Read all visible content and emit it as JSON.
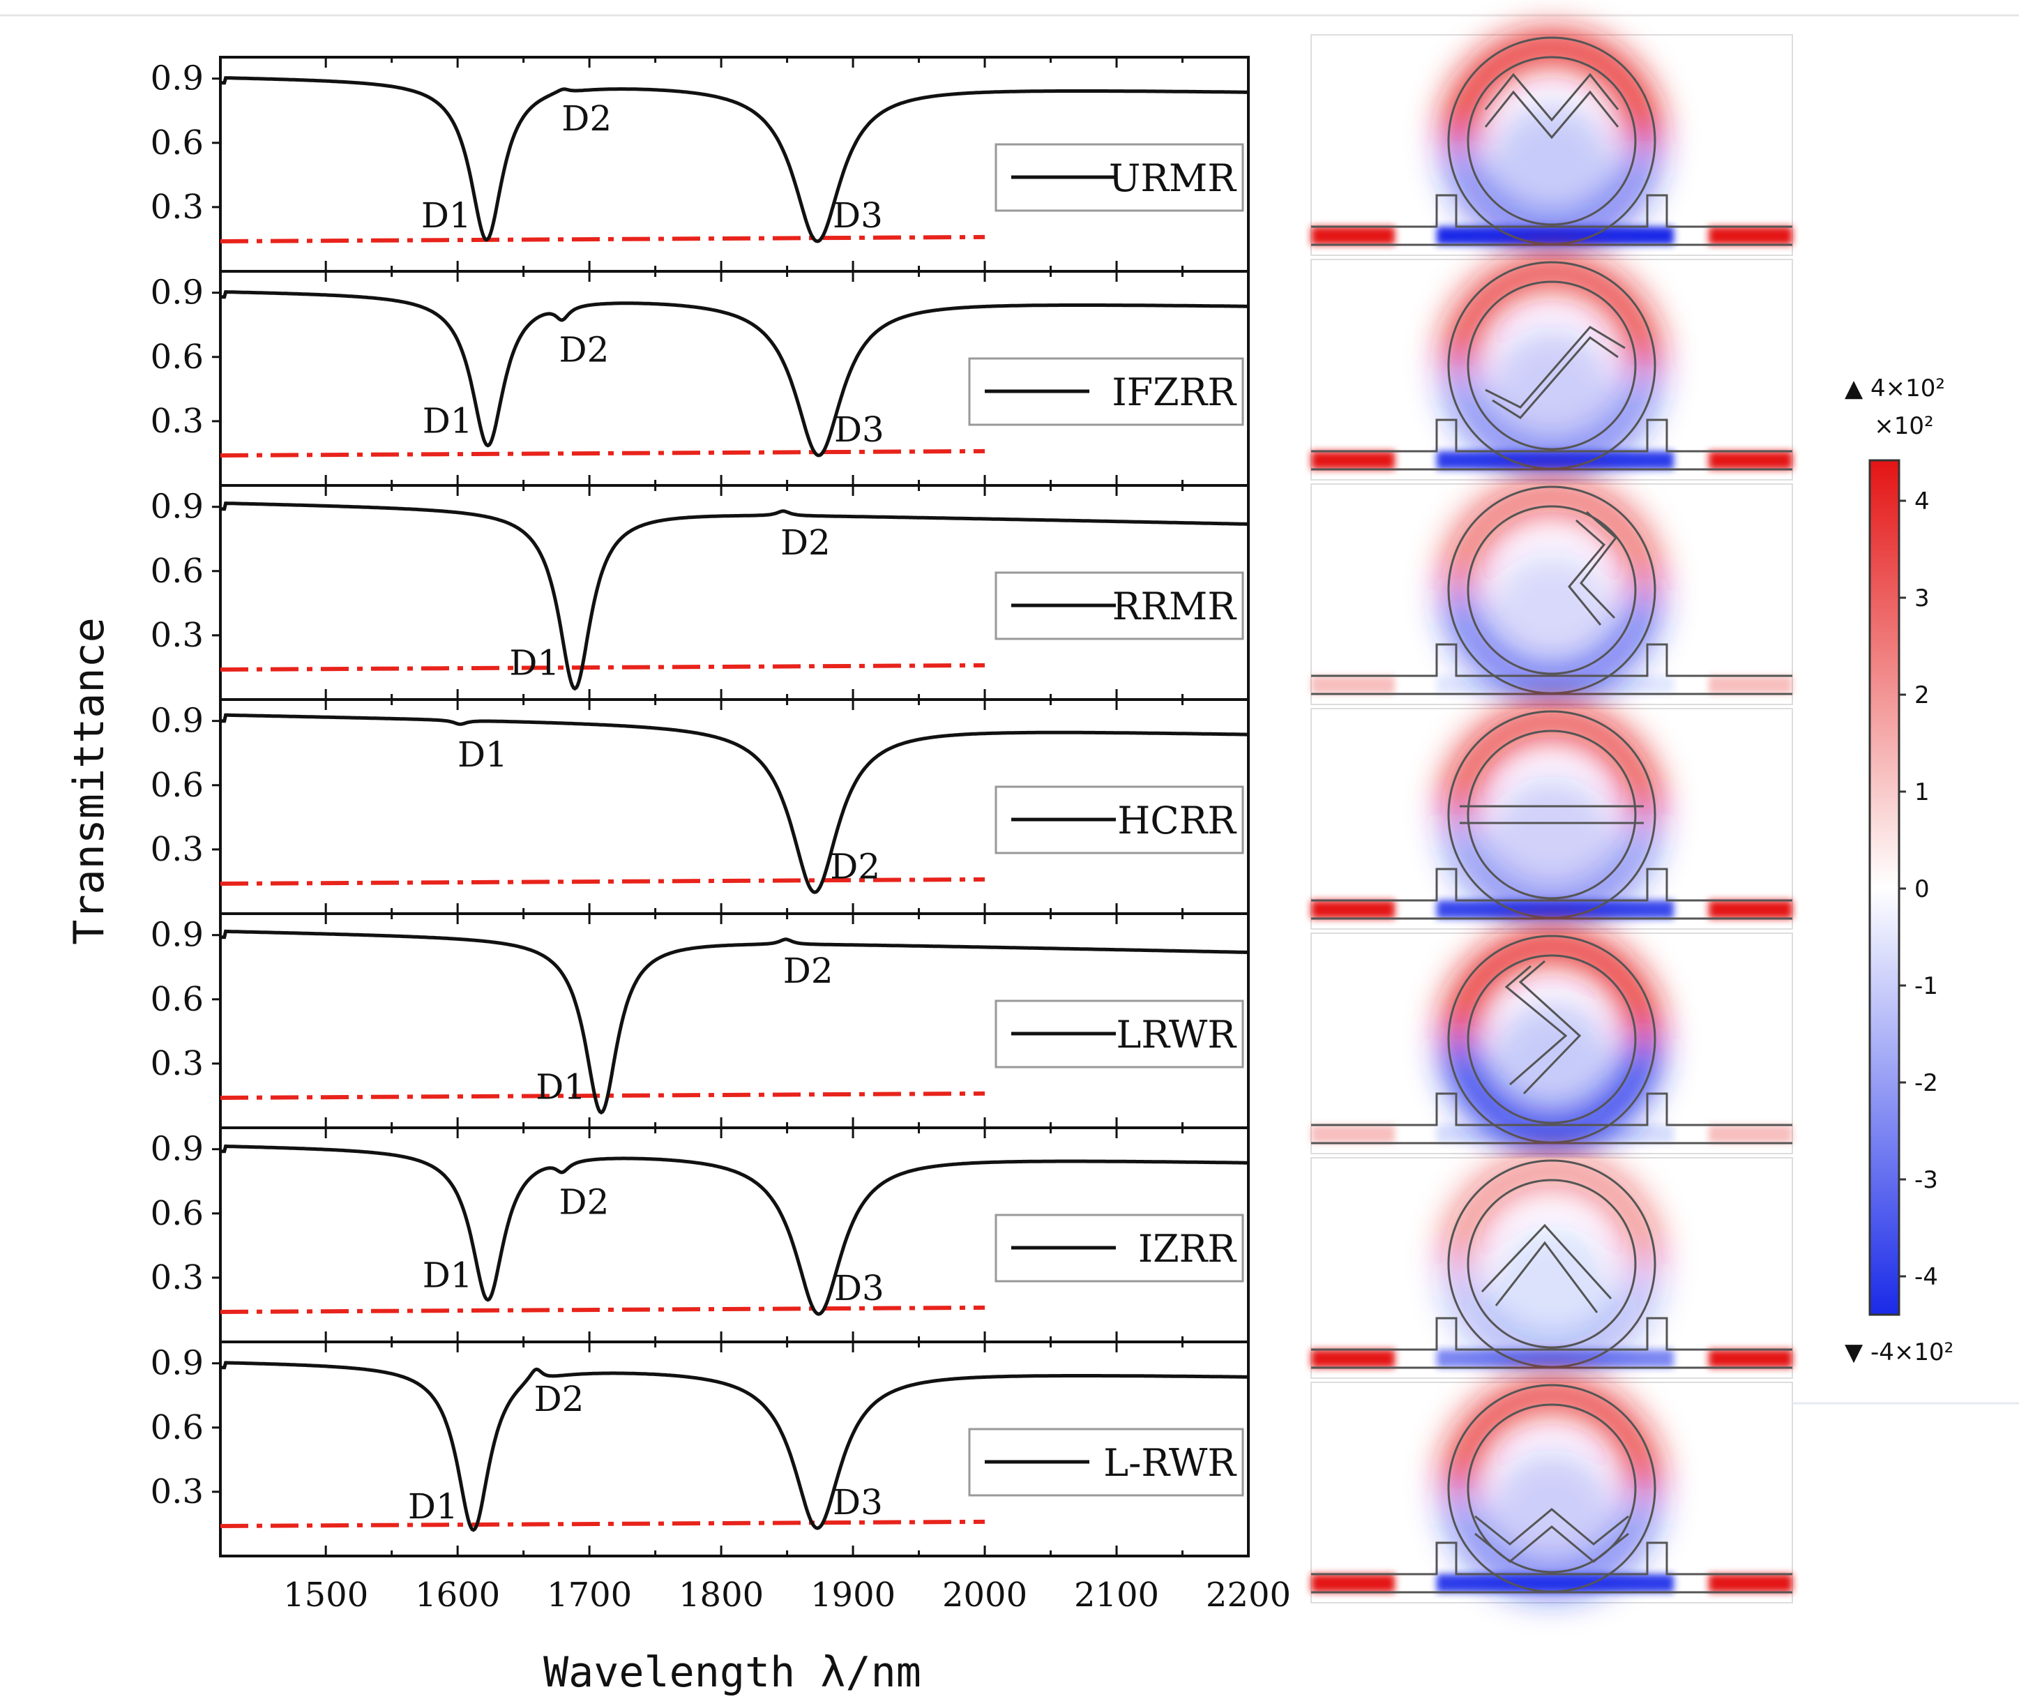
{
  "chart_data": {
    "type": "line",
    "xlabel": "Wavelength λ/nm",
    "ylabel": "Transmittance",
    "xlim": [
      1420,
      2200
    ],
    "ylim": [
      0,
      1.0
    ],
    "x_ticks": [
      1500,
      1600,
      1700,
      1800,
      1900,
      2000,
      2100,
      2200
    ],
    "y_ticks": [
      0.3,
      0.6,
      0.9
    ],
    "y_tick_labels": [
      "0.3",
      "0.6",
      "0.9"
    ],
    "reference_line": {
      "style": "dash-dot",
      "color": "#e8231b",
      "values": [
        0.14,
        0.16
      ]
    },
    "panels": [
      {
        "name": "URMR",
        "base": [
          0.91,
          0.84
        ],
        "dips": [
          {
            "label": "D1",
            "x": 1622,
            "y": 0.14
          },
          {
            "label": "D2",
            "x": 1681,
            "y": 0.86
          },
          {
            "label": "D3",
            "x": 1873,
            "y": 0.14
          }
        ]
      },
      {
        "name": "IFZRR",
        "base": [
          0.91,
          0.84
        ],
        "dips": [
          {
            "label": "D1",
            "x": 1623,
            "y": 0.18
          },
          {
            "label": "D2",
            "x": 1679,
            "y": 0.78
          },
          {
            "label": "D3",
            "x": 1874,
            "y": 0.14
          }
        ]
      },
      {
        "name": "RRMR",
        "base": [
          0.92,
          0.82
        ],
        "dips": [
          {
            "label": "D1",
            "x": 1689,
            "y": 0.05
          },
          {
            "label": "D2",
            "x": 1847,
            "y": 0.88
          }
        ]
      },
      {
        "name": "HCRR",
        "base": [
          0.93,
          0.84
        ],
        "dips": [
          {
            "label": "D1",
            "x": 1602,
            "y": 0.89
          },
          {
            "label": "D2",
            "x": 1871,
            "y": 0.1
          }
        ]
      },
      {
        "name": "LRWR",
        "base": [
          0.92,
          0.82
        ],
        "dips": [
          {
            "label": "D1",
            "x": 1709,
            "y": 0.07
          },
          {
            "label": "D2",
            "x": 1849,
            "y": 0.88
          }
        ]
      },
      {
        "name": "IZRR",
        "base": [
          0.92,
          0.84
        ],
        "dips": [
          {
            "label": "D1",
            "x": 1623,
            "y": 0.19
          },
          {
            "label": "D2",
            "x": 1679,
            "y": 0.8
          },
          {
            "label": "D3",
            "x": 1874,
            "y": 0.13
          }
        ]
      },
      {
        "name": "L-RWR",
        "base": [
          0.91,
          0.84
        ],
        "dips": [
          {
            "label": "D1",
            "x": 1612,
            "y": 0.11
          },
          {
            "label": "D2",
            "x": 1660,
            "y": 0.88
          },
          {
            "label": "D3",
            "x": 1873,
            "y": 0.13
          }
        ]
      }
    ],
    "field_maps": [
      {
        "panel": "URMR",
        "inner": "m-shape",
        "strength": 1.0
      },
      {
        "panel": "IFZRR",
        "inner": "z-shape",
        "strength": 0.9
      },
      {
        "panel": "RRMR",
        "inner": "right-zigzag",
        "strength": 0.7
      },
      {
        "panel": "HCRR",
        "inner": "half-circle",
        "strength": 0.85
      },
      {
        "panel": "LRWR",
        "inner": "left-zigzag",
        "strength": 1.0
      },
      {
        "panel": "IZRR",
        "inner": "inverted-v",
        "strength": 0.55
      },
      {
        "panel": "L-RWR",
        "inner": "w-shape",
        "strength": 0.9
      }
    ],
    "colorbar": {
      "top_label": "▲ 4×10²",
      "multiplier": "×10²",
      "ticks": [
        "4",
        "3",
        "2",
        "1",
        "0",
        "-1",
        "-2",
        "-3",
        "-4"
      ],
      "bottom_label": "▼ -4×10²",
      "colors": {
        "max": "#e41414",
        "mid": "#ffffff",
        "min": "#1a2ae8"
      }
    }
  }
}
